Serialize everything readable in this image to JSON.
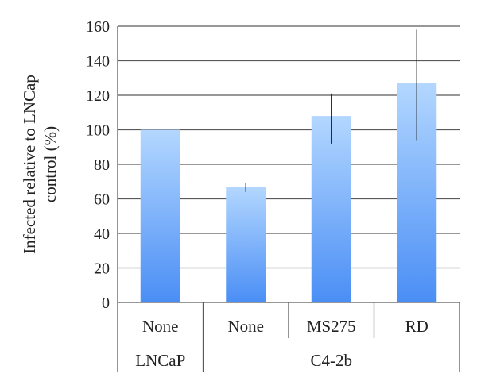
{
  "chart_data": {
    "type": "bar",
    "title": "",
    "xlabel": "",
    "ylabel_lines": [
      "Infected relative to LNCap",
      "control (%)"
    ],
    "ylim": [
      0,
      160
    ],
    "yticks": [
      0,
      20,
      40,
      60,
      80,
      100,
      120,
      140,
      160
    ],
    "grid": true,
    "legend": "none",
    "bar_gradient": {
      "top": "#b3d7ff",
      "bottom": "#4a8ef5"
    },
    "categories": [
      "None",
      "None",
      "MS275",
      "RD"
    ],
    "groups": [
      {
        "label": "LNCaP",
        "span": 1
      },
      {
        "label": "C4-2b",
        "span": 3
      }
    ],
    "values": [
      100,
      67,
      108,
      127
    ],
    "error_bars": [
      null,
      [
        64,
        69
      ],
      [
        92,
        121
      ],
      [
        94,
        158
      ]
    ]
  }
}
